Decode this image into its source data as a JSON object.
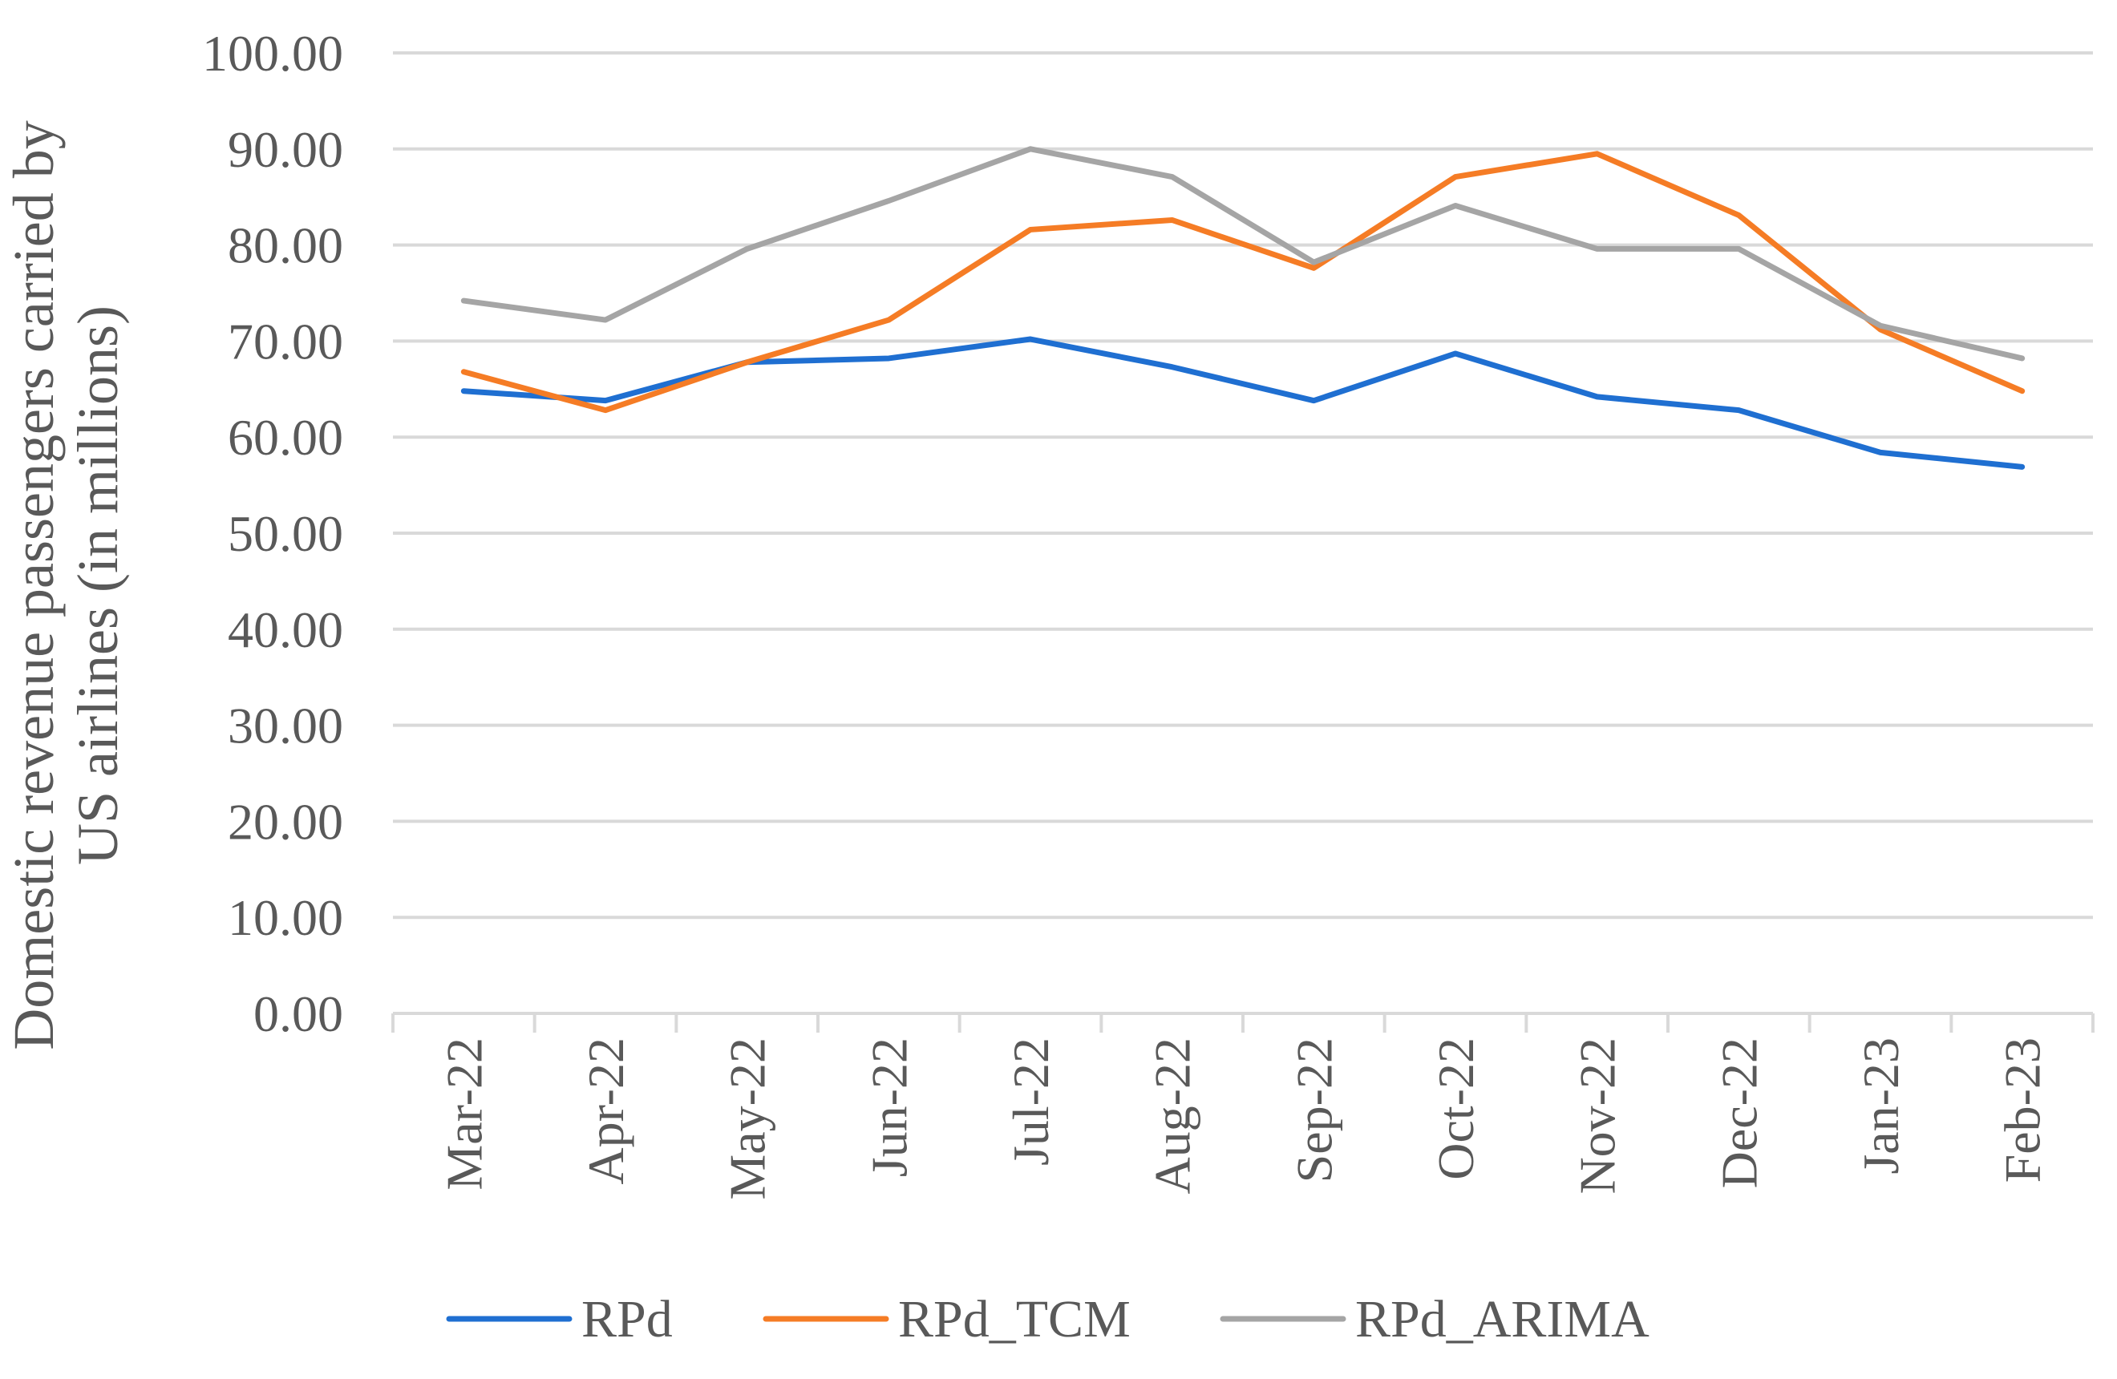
{
  "chart_data": {
    "type": "line",
    "title": "",
    "xlabel": "",
    "ylabel_lines": [
      "Domestic revenue passengers carried by",
      "US airlines (in millions)"
    ],
    "ylim": [
      0,
      100
    ],
    "ystep": 10,
    "ytick_labels": [
      "0.00",
      "10.00",
      "20.00",
      "30.00",
      "40.00",
      "50.00",
      "60.00",
      "70.00",
      "80.00",
      "90.00",
      "100.00"
    ],
    "grid": true,
    "legend_position": "bottom",
    "categories": [
      "Mar-22",
      "Apr-22",
      "May-22",
      "Jun-22",
      "Jul-22",
      "Aug-22",
      "Sep-22",
      "Oct-22",
      "Nov-22",
      "Dec-22",
      "Jan-23",
      "Feb-23"
    ],
    "series": [
      {
        "name": "RPd",
        "color": "#1f6fd1",
        "values": [
          64.8,
          63.8,
          67.8,
          68.2,
          70.2,
          67.3,
          63.8,
          68.7,
          64.2,
          62.8,
          58.4,
          56.9
        ]
      },
      {
        "name": "RPd_TCM",
        "color": "#f57c25",
        "values": [
          66.8,
          62.8,
          67.8,
          72.2,
          81.6,
          82.6,
          77.6,
          87.1,
          89.5,
          83.1,
          71.2,
          64.8
        ]
      },
      {
        "name": "RPd_ARIMA",
        "color": "#a5a5a5",
        "values": [
          74.2,
          72.2,
          79.6,
          84.6,
          90.0,
          87.1,
          78.2,
          84.1,
          79.6,
          79.6,
          71.6,
          68.2
        ]
      }
    ]
  }
}
